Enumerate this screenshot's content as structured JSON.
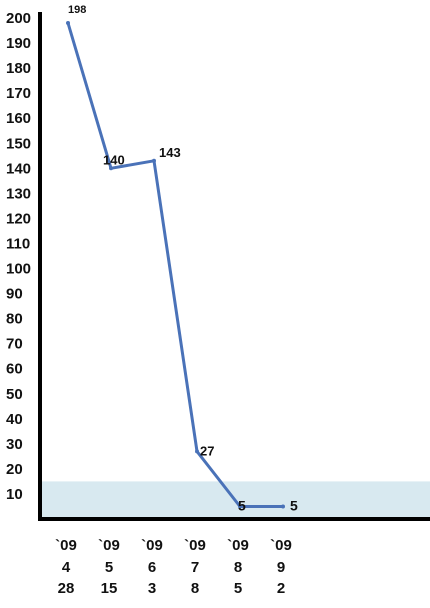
{
  "chart_data": {
    "type": "line",
    "x": [
      "`09 4 28",
      "`09 5 15",
      "`09 6 3",
      "`09 7 8",
      "`09 8 5",
      "`09 9 2"
    ],
    "x_tick_lines": [
      [
        "`09",
        "4",
        "28"
      ],
      [
        "`09",
        "5",
        "15"
      ],
      [
        "`09",
        "6",
        "3"
      ],
      [
        "`09",
        "7",
        "8"
      ],
      [
        "`09",
        "8",
        "5"
      ],
      [
        "`09",
        "9",
        "2"
      ]
    ],
    "series": [
      {
        "values": [
          198,
          140,
          143,
          27,
          5,
          5
        ]
      }
    ],
    "data_labels": [
      "198",
      "140",
      "143",
      "27",
      "5",
      "5"
    ],
    "y_ticks": [
      10,
      20,
      30,
      40,
      50,
      60,
      70,
      80,
      90,
      100,
      110,
      120,
      130,
      140,
      150,
      160,
      170,
      180,
      190,
      200
    ],
    "ylim": [
      0,
      200
    ],
    "shaded_band": [
      0,
      15
    ],
    "grid": false,
    "colors": {
      "line": "#4a72b8",
      "band": "#d8e9f0",
      "axis": "#000000",
      "legend_text": "#e0261a"
    }
  }
}
